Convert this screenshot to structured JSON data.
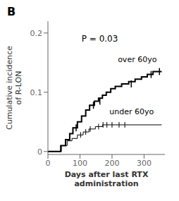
{
  "chart_data": {
    "type": "line",
    "title": "B",
    "x_label": "Days after last RTX\nadministration",
    "y_label": "Cumulative incidence\nof R-LON",
    "xlim": [
      0,
      365
    ],
    "ylim": [
      -0.005,
      0.22
    ],
    "xticks": [
      0,
      100,
      200,
      300
    ],
    "yticks": [
      0,
      0.1,
      0.2
    ],
    "series": [
      {
        "color": "#000000",
        "marker": "|",
        "x": [
          0,
          40,
          40,
          55,
          55,
          68,
          68,
          78,
          78,
          92,
          92,
          105,
          105,
          118,
          118,
          130,
          130,
          145,
          145,
          158,
          158,
          170,
          170,
          182,
          182,
          196,
          196,
          210,
          210,
          230,
          230,
          252,
          252,
          272,
          272,
          292,
          292,
          310,
          310,
          328,
          328,
          355
        ],
        "values": [
          0,
          0,
          0.01,
          0.01,
          0.02,
          0.02,
          0.03,
          0.03,
          0.04,
          0.04,
          0.05,
          0.05,
          0.06,
          0.06,
          0.07,
          0.07,
          0.078,
          0.078,
          0.085,
          0.085,
          0.09,
          0.09,
          0.095,
          0.095,
          0.1,
          0.1,
          0.106,
          0.106,
          0.11,
          0.11,
          0.114,
          0.114,
          0.118,
          0.118,
          0.122,
          0.122,
          0.126,
          0.126,
          0.13,
          0.13,
          0.135,
          0.135
        ],
        "censor_x": [
          88,
          142,
          162,
          260,
          322,
          348
        ],
        "censor_y": [
          0.04,
          0.078,
          0.085,
          0.114,
          0.13,
          0.135
        ]
      },
      {
        "color": "#000000",
        "marker": "|",
        "x": [
          0,
          42,
          42,
          60,
          60,
          75,
          75,
          92,
          92,
          110,
          110,
          128,
          128,
          148,
          148,
          170,
          170,
          200,
          200,
          355
        ],
        "values": [
          0,
          0,
          0.01,
          0.01,
          0.018,
          0.018,
          0.022,
          0.022,
          0.028,
          0.028,
          0.033,
          0.033,
          0.038,
          0.038,
          0.042,
          0.042,
          0.045,
          0.045,
          0.045,
          0.045
        ],
        "censor_x": [
          102,
          118,
          132,
          158,
          172,
          184,
          200,
          222,
          240
        ],
        "censor_y": [
          0.028,
          0.033,
          0.038,
          0.042,
          0.045,
          0.045,
          0.045,
          0.045,
          0.045
        ]
      }
    ],
    "annotations": [
      {
        "text": "over 60yo",
        "x": 218,
        "y": 0.148
      },
      {
        "text": "under 60yo",
        "x": 192,
        "y": 0.06
      },
      {
        "text": "P = 0.03",
        "x": 105,
        "y": 0.198
      }
    ]
  }
}
